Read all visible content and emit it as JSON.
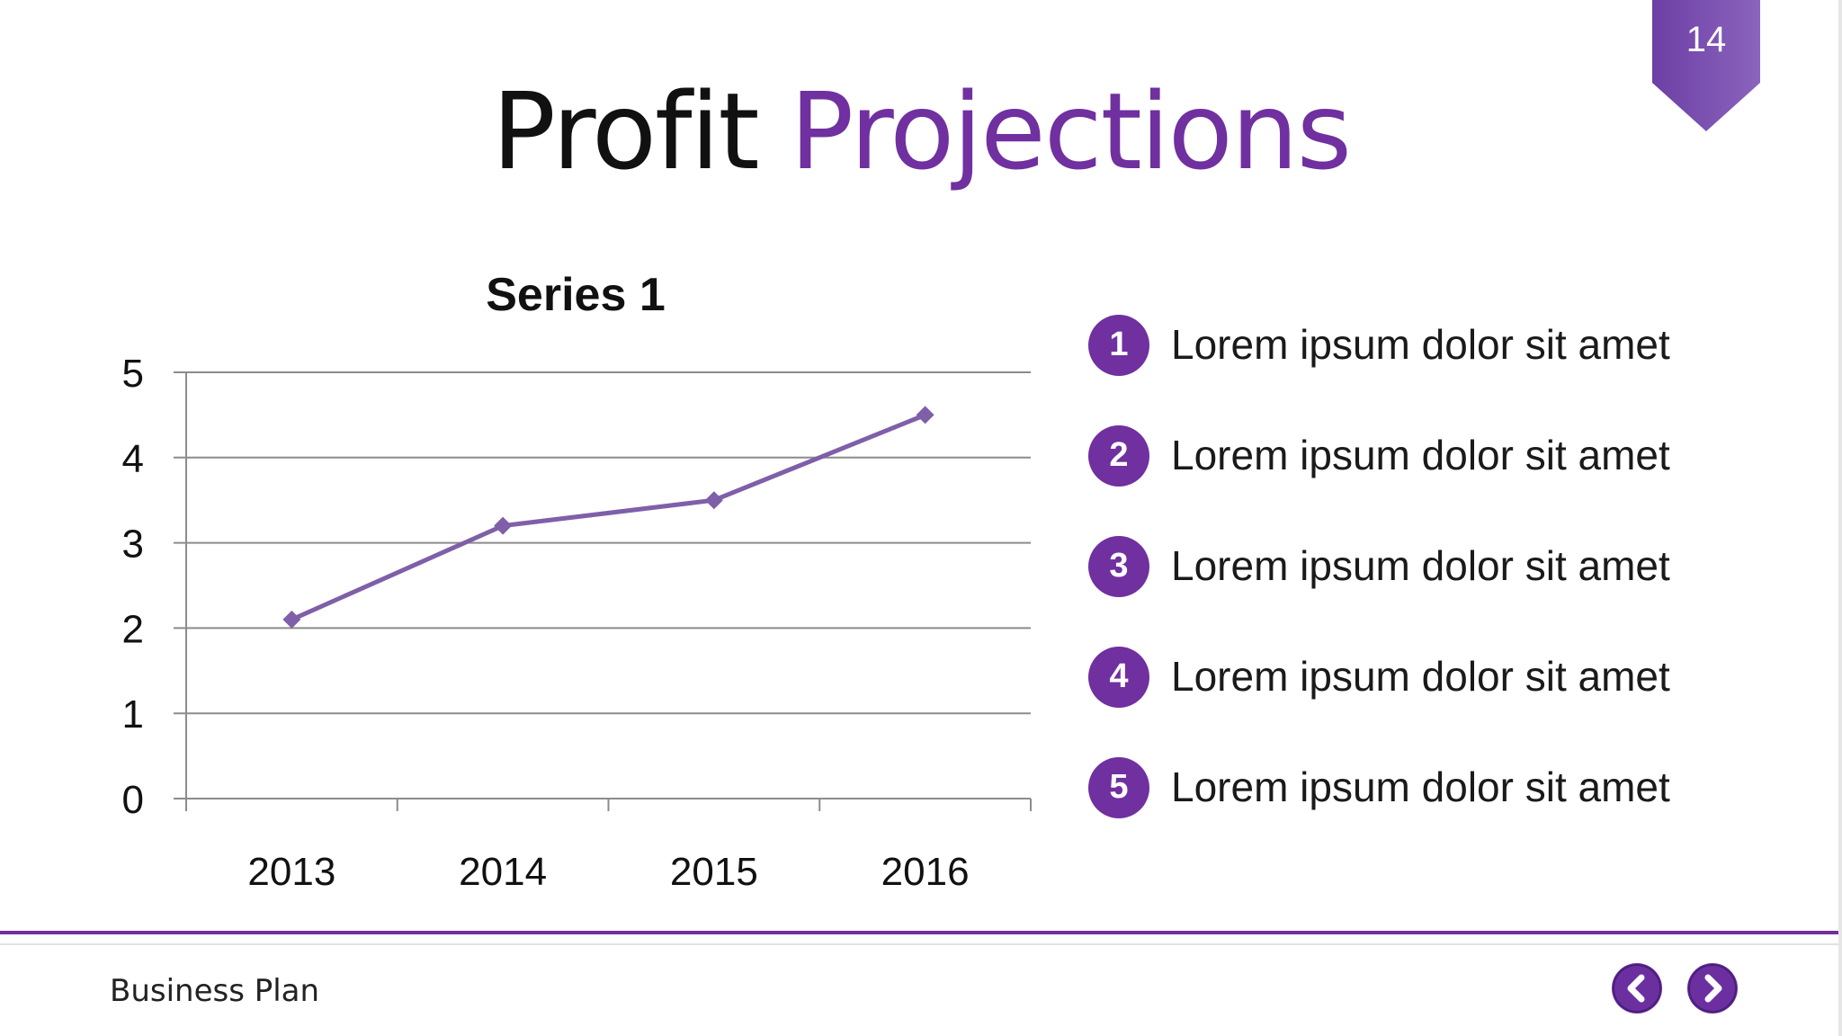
{
  "slide": {
    "page_number": "14",
    "title_dark": "Profit",
    "title_accent": "Projections",
    "footer_text": "Business Plan"
  },
  "colors": {
    "accent": "#7030a0",
    "line": "#7f5fa8",
    "grid": "#8c8c8c"
  },
  "icons": {
    "prev": "chevron-left-icon",
    "next": "chevron-right-icon"
  },
  "bullets": [
    {
      "num": "1",
      "text": "Lorem ipsum dolor sit amet"
    },
    {
      "num": "2",
      "text": "Lorem ipsum dolor sit amet"
    },
    {
      "num": "3",
      "text": "Lorem ipsum dolor sit amet"
    },
    {
      "num": "4",
      "text": "Lorem ipsum dolor sit amet"
    },
    {
      "num": "5",
      "text": "Lorem ipsum dolor sit amet"
    }
  ],
  "chart_data": {
    "type": "line",
    "title": "Series 1",
    "categories": [
      "2013",
      "2014",
      "2015",
      "2016"
    ],
    "series": [
      {
        "name": "Series 1",
        "values": [
          2.1,
          3.2,
          3.5,
          4.5
        ]
      }
    ],
    "ylim": [
      0,
      5
    ],
    "yticks": [
      "0",
      "1",
      "2",
      "3",
      "4",
      "5"
    ],
    "grid": true,
    "legend": "none"
  }
}
